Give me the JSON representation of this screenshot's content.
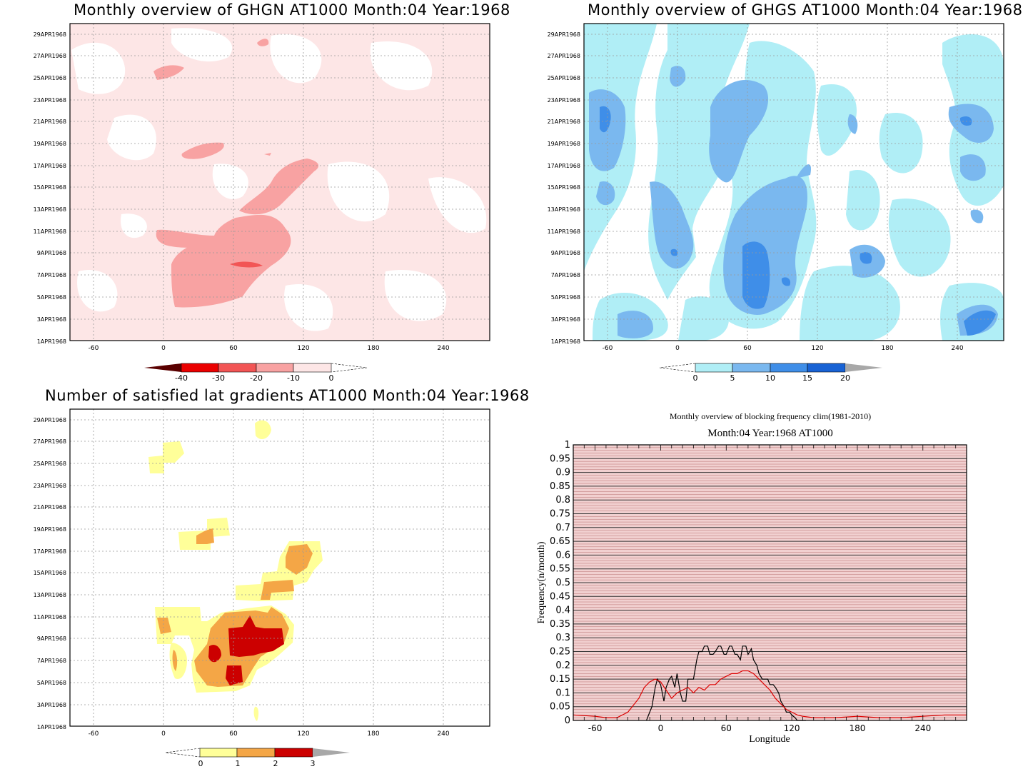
{
  "panels": {
    "ghgn": {
      "title": "Monthly overview of GHGN AT1000 Month:04 Year:1968",
      "colorbar_labels": [
        "-40",
        "-30",
        "-20",
        "-10",
        "0"
      ],
      "colorbar_colors": [
        "#5a0000",
        "#ea0000",
        "#f25555",
        "#f8a2a2",
        "#fde6e6"
      ]
    },
    "ghgs": {
      "title": "Monthly overview of GHGS AT1000 Month:04 Year:1968",
      "colorbar_labels": [
        "0",
        "5",
        "10",
        "15",
        "20"
      ],
      "colorbar_colors": [
        "#b0eef6",
        "#7ab8ef",
        "#3f8ee8",
        "#1862d4",
        "#a8a8a8"
      ]
    },
    "gradients": {
      "title": "Number of satisfied lat gradients AT1000 Month:04 Year:1968",
      "colorbar_labels": [
        "0",
        "1",
        "2",
        "3"
      ],
      "colorbar_colors": [
        "#ffff99",
        "#fdb040",
        "#f08020",
        "#cc0000",
        "#a8a8a8"
      ]
    },
    "frequency": {
      "title": "Monthly overview of blocking frequency clim(1981-2010)",
      "subtitle": "Month:04 Year:1968  AT1000",
      "xlabel": "Longitude",
      "ylabel": "Frequency(n/month)"
    }
  },
  "map_axes": {
    "x_ticks": [
      "-60",
      "0",
      "60",
      "120",
      "180",
      "240"
    ],
    "y_ticks": [
      "1APR1968",
      "3APR1968",
      "5APR1968",
      "7APR1968",
      "9APR1968",
      "11APR1968",
      "13APR1968",
      "15APR1968",
      "17APR1968",
      "19APR1968",
      "21APR1968",
      "23APR1968",
      "25APR1968",
      "27APR1968",
      "29APR1968"
    ]
  },
  "chart_data": [
    {
      "type": "heatmap",
      "title": "Monthly overview of GHGN AT1000 Month:04 Year:1968",
      "x_range": [
        -80,
        280
      ],
      "y_range": [
        "1APR1968",
        "30APR1968"
      ],
      "levels": [
        -40,
        -30,
        -20,
        -10,
        0
      ]
    },
    {
      "type": "heatmap",
      "title": "Monthly overview of GHGS AT1000 Month:04 Year:1968",
      "x_range": [
        -80,
        280
      ],
      "y_range": [
        "1APR1968",
        "30APR1968"
      ],
      "levels": [
        0,
        5,
        10,
        15,
        20
      ]
    },
    {
      "type": "heatmap",
      "title": "Number of satisfied lat gradients AT1000 Month:04 Year:1968",
      "x_range": [
        -80,
        280
      ],
      "y_range": [
        "1APR1968",
        "30APR1968"
      ],
      "levels": [
        0,
        1,
        2,
        3
      ]
    },
    {
      "type": "line",
      "title": "Monthly overview of blocking frequency clim(1981-2010)",
      "subtitle": "Month:04 Year:1968  AT1000",
      "xlabel": "Longitude",
      "ylabel": "Frequency(n/month)",
      "xlim": [
        -80,
        280
      ],
      "ylim": [
        0,
        1
      ],
      "x_ticks": [
        -60,
        0,
        60,
        120,
        180,
        240
      ],
      "y_ticks": [
        0,
        0.05,
        0.1,
        0.15,
        0.2,
        0.25,
        0.3,
        0.35,
        0.4,
        0.45,
        0.5,
        0.55,
        0.6,
        0.65,
        0.7,
        0.75,
        0.8,
        0.85,
        0.9,
        0.95,
        1
      ],
      "grid": true,
      "series": [
        {
          "color": "#000000",
          "x": [
            -13,
            -10,
            -8,
            -5,
            -3,
            0,
            3,
            5,
            8,
            10,
            13,
            15,
            18,
            20,
            23,
            25,
            28,
            30,
            33,
            35,
            38,
            40,
            43,
            45,
            48,
            50,
            53,
            55,
            58,
            60,
            63,
            65,
            68,
            70,
            73,
            75,
            78,
            80,
            83,
            85,
            88,
            90,
            93,
            95,
            98,
            100,
            103,
            105,
            108,
            110,
            113,
            115,
            118,
            120,
            123,
            125,
            128,
            130,
            133
          ],
          "y": [
            0,
            0.03,
            0.05,
            0.12,
            0.15,
            0.13,
            0.07,
            0.12,
            0.15,
            0.16,
            0.12,
            0.17,
            0.1,
            0.07,
            0.07,
            0.15,
            0.15,
            0.15,
            0.22,
            0.25,
            0.25,
            0.27,
            0.27,
            0.24,
            0.24,
            0.25,
            0.27,
            0.27,
            0.24,
            0.24,
            0.27,
            0.27,
            0.24,
            0.24,
            0.22,
            0.27,
            0.27,
            0.24,
            0.26,
            0.22,
            0.2,
            0.17,
            0.15,
            0.15,
            0.15,
            0.13,
            0.13,
            0.12,
            0.1,
            0.07,
            0.05,
            0.03,
            0.03,
            0.02,
            0.01,
            0,
            0,
            0,
            0
          ]
        },
        {
          "color": "#dd0000",
          "x": [
            -80,
            -60,
            -50,
            -40,
            -30,
            -20,
            -15,
            -10,
            -5,
            0,
            5,
            10,
            15,
            20,
            25,
            30,
            35,
            40,
            45,
            50,
            55,
            60,
            65,
            70,
            75,
            80,
            85,
            90,
            95,
            100,
            105,
            110,
            115,
            120,
            125,
            130,
            140,
            160,
            180,
            200,
            220,
            240,
            260,
            280
          ],
          "y": [
            0.02,
            0.015,
            0.01,
            0.01,
            0.03,
            0.08,
            0.12,
            0.14,
            0.15,
            0.14,
            0.11,
            0.08,
            0.1,
            0.11,
            0.12,
            0.1,
            0.12,
            0.11,
            0.13,
            0.13,
            0.15,
            0.16,
            0.17,
            0.17,
            0.18,
            0.18,
            0.17,
            0.15,
            0.13,
            0.11,
            0.08,
            0.06,
            0.04,
            0.03,
            0.02,
            0.015,
            0.01,
            0.01,
            0.015,
            0.01,
            0.01,
            0.015,
            0.02,
            0.02
          ]
        }
      ]
    }
  ]
}
